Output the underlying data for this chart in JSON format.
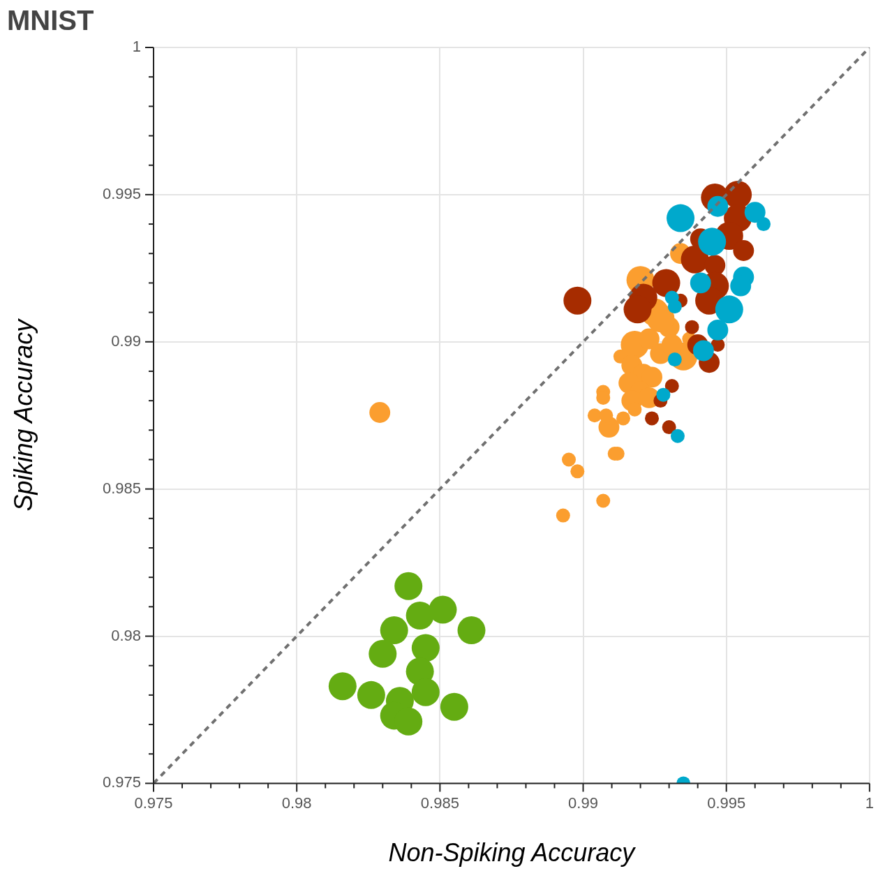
{
  "chart_data": {
    "type": "bubble",
    "title": "MNIST",
    "xlabel": "Non-Spiking Accuracy",
    "ylabel": "Spiking Accuracy",
    "xlim": [
      0.975,
      1
    ],
    "ylim": [
      0.975,
      1
    ],
    "xticks": [
      0.975,
      {
        "value": 0.976,
        "label": null
      },
      {
        "value": 0.977,
        "label": null
      },
      {
        "value": 0.978,
        "label": null
      },
      {
        "value": 0.979,
        "label": null
      },
      0.98,
      {
        "value": 0.981,
        "label": null
      },
      {
        "value": 0.982,
        "label": null
      },
      {
        "value": 0.983,
        "label": null
      },
      {
        "value": 0.984,
        "label": null
      },
      0.985,
      {
        "value": 0.986,
        "label": null
      },
      {
        "value": 0.987,
        "label": null
      },
      {
        "value": 0.988,
        "label": null
      },
      {
        "value": 0.989,
        "label": null
      },
      0.99,
      {
        "value": 0.991,
        "label": null
      },
      {
        "value": 0.992,
        "label": null
      },
      {
        "value": 0.993,
        "label": null
      },
      {
        "value": 0.994,
        "label": null
      },
      0.995,
      {
        "value": 0.996,
        "label": null
      },
      {
        "value": 0.997,
        "label": null
      },
      {
        "value": 0.998,
        "label": null
      },
      {
        "value": 0.999,
        "label": null
      },
      1
    ],
    "yticks": [
      0.975,
      {
        "value": 0.976,
        "label": null
      },
      {
        "value": 0.977,
        "label": null
      },
      {
        "value": 0.978,
        "label": null
      },
      {
        "value": 0.979,
        "label": null
      },
      0.98,
      {
        "value": 0.981,
        "label": null
      },
      {
        "value": 0.982,
        "label": null
      },
      {
        "value": 0.983,
        "label": null
      },
      {
        "value": 0.984,
        "label": null
      },
      0.985,
      {
        "value": 0.986,
        "label": null
      },
      {
        "value": 0.987,
        "label": null
      },
      {
        "value": 0.988,
        "label": null
      },
      {
        "value": 0.989,
        "label": null
      },
      0.99,
      {
        "value": 0.991,
        "label": null
      },
      {
        "value": 0.992,
        "label": null
      },
      {
        "value": 0.993,
        "label": null
      },
      {
        "value": 0.994,
        "label": null
      },
      0.995,
      {
        "value": 0.996,
        "label": null
      },
      {
        "value": 0.997,
        "label": null
      },
      {
        "value": 0.998,
        "label": null
      },
      {
        "value": 0.999,
        "label": null
      },
      1
    ],
    "grid": true,
    "legend": false,
    "series": [
      {
        "type": "line",
        "color": "#707070",
        "line_style": "dashed",
        "marker": "none",
        "x": [
          0.975,
          1
        ],
        "values": [
          0.975,
          1
        ]
      },
      {
        "color": "#64ac12",
        "x": [
          0.9839,
          0.9843,
          0.9851,
          0.9861,
          0.9834,
          0.9845,
          0.983,
          0.9843,
          0.9816,
          0.9826,
          0.9845,
          0.9836,
          0.9834,
          0.9839,
          0.9855
        ],
        "values": [
          0.9817,
          0.9807,
          0.9809,
          0.9802,
          0.9802,
          0.9796,
          0.9794,
          0.9788,
          0.9783,
          0.978,
          0.9781,
          0.9778,
          0.9773,
          0.9771,
          0.9776
        ],
        "sizes": [
          1,
          1,
          1,
          1,
          1,
          1,
          1,
          1,
          1,
          1,
          1,
          1,
          1,
          1,
          1
        ]
      },
      {
        "color": "#fb9e2f",
        "x": [
          0.9829,
          0.9907,
          0.9907,
          0.9904,
          0.9909,
          0.9914,
          0.9908,
          0.9911,
          0.9912,
          0.9895,
          0.9898,
          0.9907,
          0.9893,
          0.9913,
          0.992,
          0.9925,
          0.9918,
          0.9923,
          0.993,
          0.9935,
          0.9937,
          0.9917,
          0.9921,
          0.9924,
          0.9916,
          0.992,
          0.9917,
          0.9923,
          0.9918,
          0.9927,
          0.9931,
          0.9934,
          0.9927
        ],
        "values": [
          0.9876,
          0.9883,
          0.9881,
          0.9875,
          0.9871,
          0.9874,
          0.9875,
          0.9862,
          0.9862,
          0.986,
          0.9856,
          0.9846,
          0.9841,
          0.9895,
          0.9921,
          0.991,
          0.9899,
          0.9901,
          0.9905,
          0.9895,
          0.9901,
          0.9892,
          0.9889,
          0.9888,
          0.9886,
          0.9883,
          0.988,
          0.9881,
          0.9877,
          0.9896,
          0.9899,
          0.993,
          0.9908
        ],
        "sizes": [
          0.56,
          0.25,
          0.25,
          0.25,
          0.56,
          0.25,
          0.25,
          0.25,
          0.25,
          0.25,
          0.25,
          0.25,
          0.25,
          0.25,
          1,
          1,
          1,
          0.56,
          0.56,
          1,
          0.25,
          0.56,
          0.56,
          0.56,
          0.56,
          0.56,
          0.56,
          0.56,
          0.25,
          0.56,
          0.56,
          0.56,
          1
        ]
      },
      {
        "color": "#a62c00",
        "x": [
          0.9898,
          0.9946,
          0.9954,
          0.9954,
          0.9951,
          0.9956,
          0.9939,
          0.9946,
          0.9929,
          0.9921,
          0.9946,
          0.9944,
          0.9934,
          0.9941,
          0.9938,
          0.994,
          0.9947,
          0.9944,
          0.9931,
          0.9927,
          0.9924,
          0.993,
          0.9919
        ],
        "values": [
          0.9914,
          0.9949,
          0.995,
          0.9942,
          0.9936,
          0.9931,
          0.9928,
          0.9926,
          0.992,
          0.9915,
          0.9919,
          0.9914,
          0.9914,
          0.9935,
          0.9905,
          0.9899,
          0.9899,
          0.9893,
          0.9885,
          0.988,
          0.9874,
          0.9871,
          0.9911
        ],
        "sizes": [
          1,
          1,
          1,
          1,
          1,
          0.56,
          1,
          0.56,
          1,
          1,
          1,
          1,
          0.25,
          0.56,
          0.25,
          0.56,
          0.25,
          0.56,
          0.25,
          0.25,
          0.25,
          0.25,
          1
        ]
      },
      {
        "color": "#00a9cc",
        "x": [
          0.9934,
          0.996,
          0.9963,
          0.9947,
          0.9956,
          0.9955,
          0.9945,
          0.9931,
          0.9941,
          0.9951,
          0.9947,
          0.9942,
          0.9932,
          0.9928,
          0.9933,
          0.9932,
          0.9935
        ],
        "values": [
          0.9942,
          0.9944,
          0.994,
          0.9946,
          0.9922,
          0.9919,
          0.9934,
          0.9915,
          0.992,
          0.9911,
          0.9904,
          0.9897,
          0.9894,
          0.9882,
          0.9868,
          0.9912,
          0.975
        ],
        "sizes": [
          1,
          0.56,
          0.25,
          0.56,
          0.56,
          0.56,
          1,
          0.25,
          0.56,
          1,
          0.56,
          0.56,
          0.25,
          0.25,
          0.25,
          0.25,
          0.25
        ]
      }
    ]
  }
}
